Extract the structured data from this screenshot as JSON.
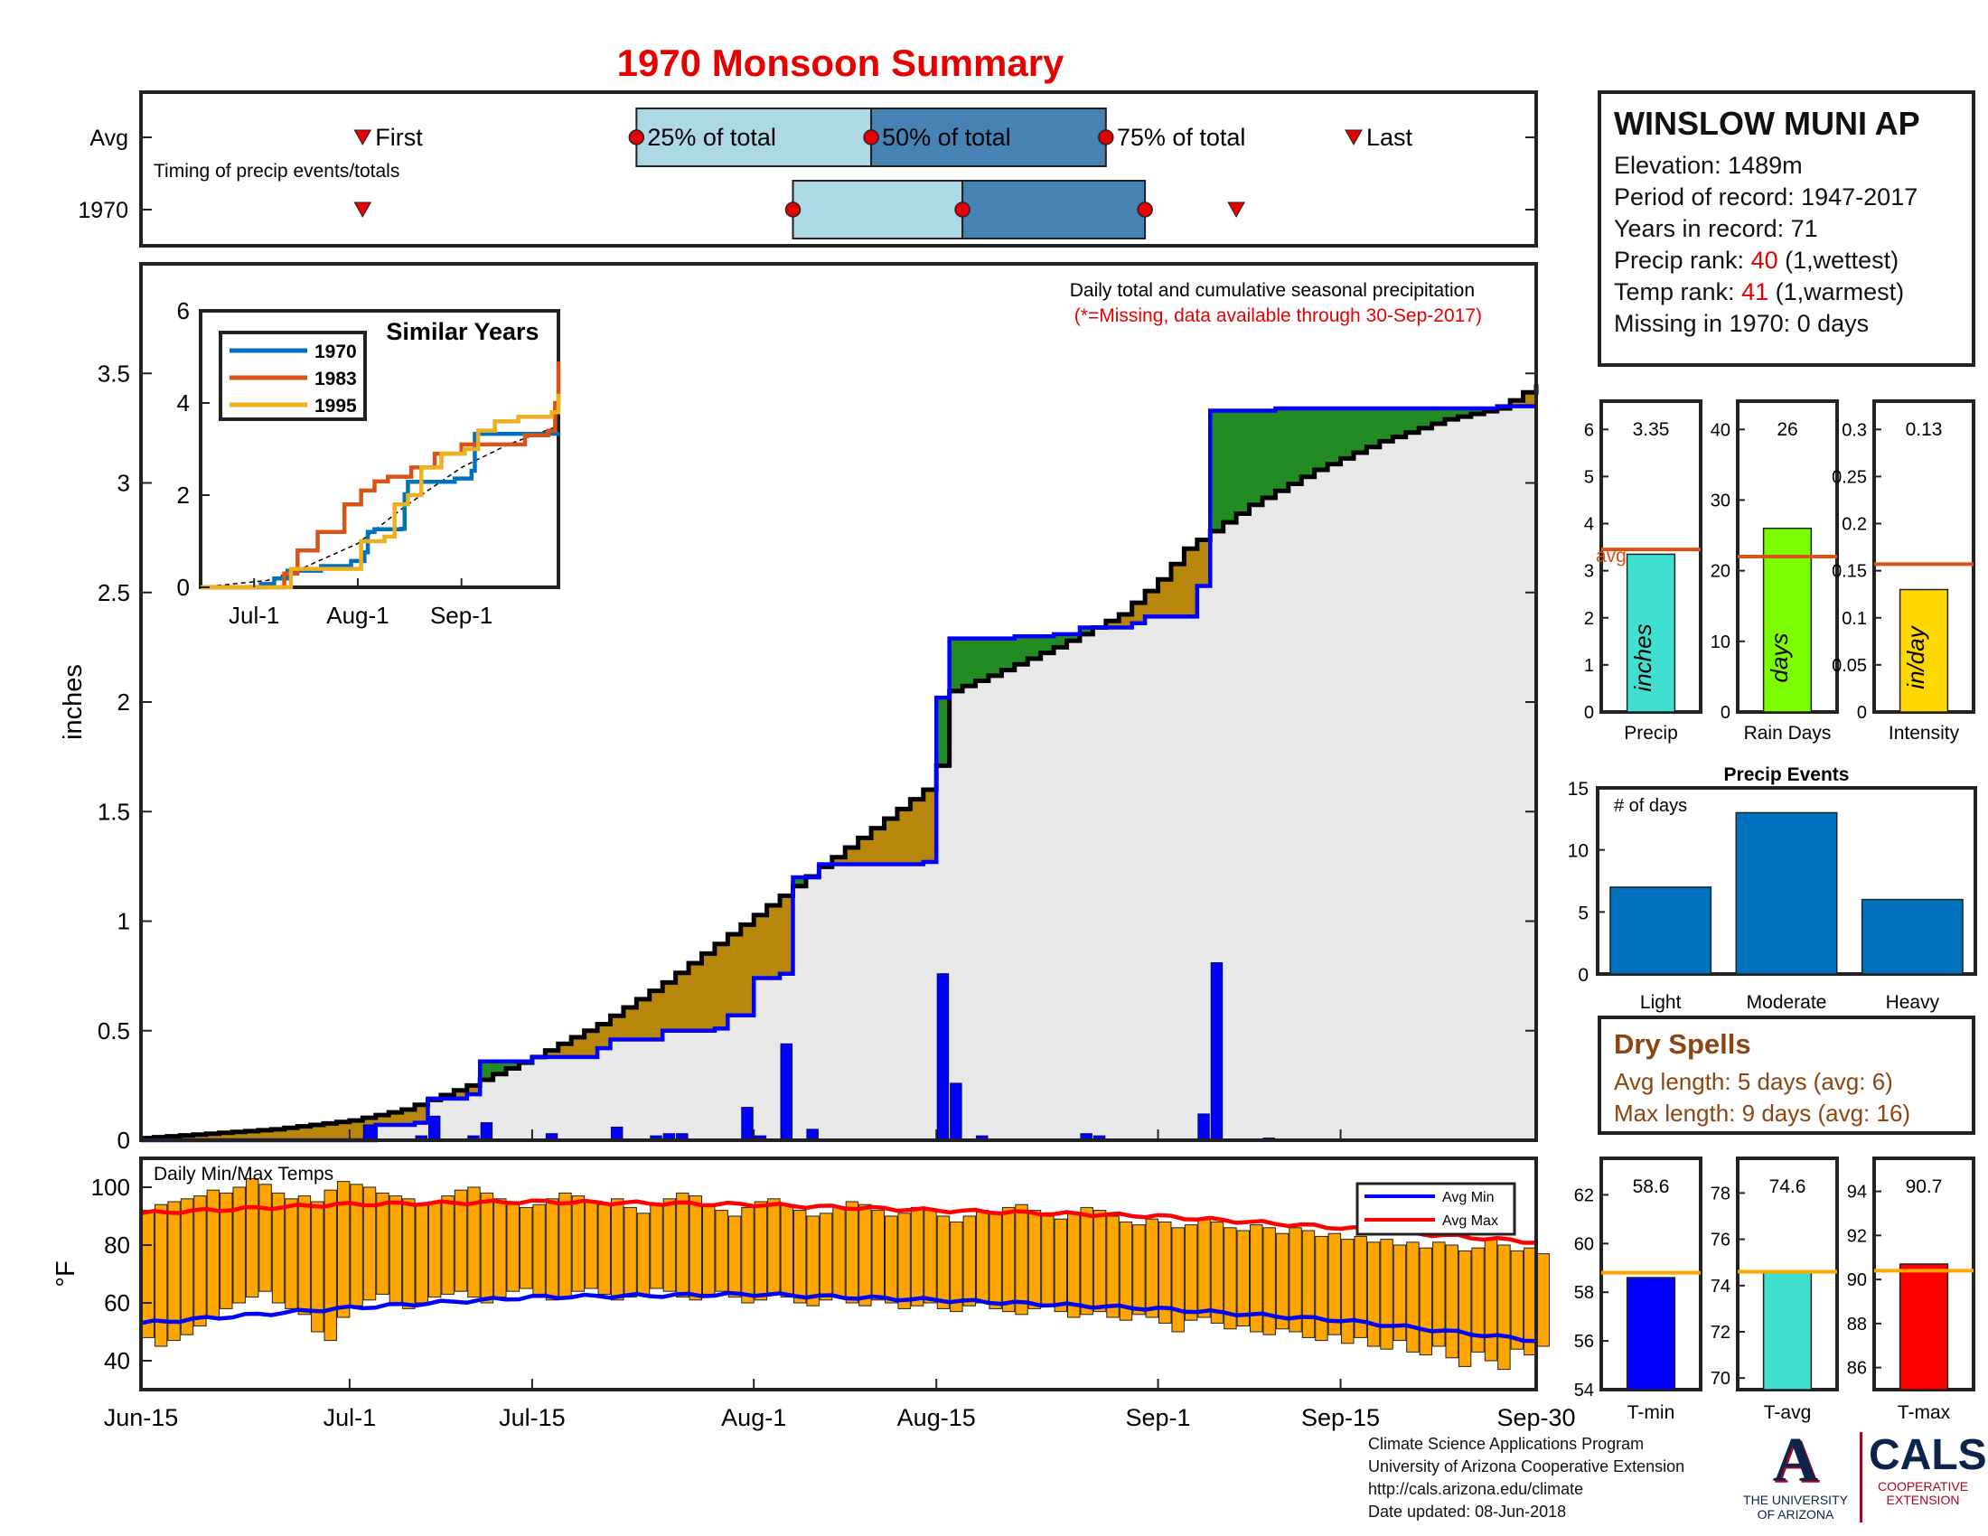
{
  "title": "1970 Monsoon Summary",
  "station": {
    "name": "WINSLOW MUNI AP",
    "elevation": "Elevation: 1489m",
    "period": "Period of record: 1947-2017",
    "years": "Years in record: 71",
    "precip_rank_label": "Precip rank: ",
    "precip_rank_value": "40",
    "precip_rank_note": " (1,wettest)",
    "temp_rank_label": "Temp rank: ",
    "temp_rank_value": "41",
    "temp_rank_note": " (1,warmest)",
    "missing": "Missing in 1970: 0 days"
  },
  "dry_spells": {
    "title": "Dry Spells",
    "avg": "Avg length: 5 days (avg: 6)",
    "max": "Max length: 9 days (avg: 16)"
  },
  "credits": {
    "line1": "Climate Science Applications Program",
    "line2": "University of Arizona Cooperative Extension",
    "line3": "http://cals.arizona.edu/climate",
    "line4": " Date updated: 08-Jun-2018"
  },
  "logos": {
    "ua_mark": "A",
    "ua_text1": "THE UNIVERSITY",
    "ua_text2": "OF ARIZONA",
    "cals_mark": "CALS",
    "cals_text1": "COOPERATIVE",
    "cals_text2": "EXTENSION"
  },
  "chart_data": [
    {
      "id": "timing",
      "type": "bar",
      "row_labels": [
        "Avg",
        "1970"
      ],
      "note": "Timing of precip events/totals",
      "annotations": [
        "First",
        "25% of total",
        "50% of total",
        "75% of total",
        "Last"
      ],
      "x_range": [
        "Jun-15",
        "Sep-30"
      ],
      "rows": [
        {
          "label": "Avg",
          "first_day": 17,
          "p25_day": 38,
          "p50_day": 56,
          "p75_day": 74,
          "last_day": 93
        },
        {
          "label": "1970",
          "first_day": 17,
          "p25_day": 50,
          "p50_day": 63,
          "p75_day": 77,
          "last_day": 84
        }
      ],
      "colors": {
        "early": "#add8e6",
        "late": "#4682b4",
        "marker": "#e60000"
      }
    },
    {
      "id": "precip",
      "type": "area",
      "note_title": "Daily total and cumulative seasonal precipitation",
      "note_missing": "(*=Missing, data available through 30-Sep-2017)",
      "ylabel": "inches",
      "ylim": [
        0,
        4
      ],
      "yticks": [
        0,
        0.5,
        1,
        1.5,
        2,
        2.5,
        3,
        3.5
      ],
      "xticks": [
        "Jun-15",
        "Jul-1",
        "Jul-15",
        "Aug-1",
        "Aug-15",
        "Sep-1",
        "Sep-15",
        "Sep-30"
      ],
      "xtick_days": [
        0,
        16,
        30,
        47,
        61,
        78,
        92,
        107
      ],
      "avg_cumulative": [
        [
          0,
          0.01
        ],
        [
          10,
          0.05
        ],
        [
          16,
          0.09
        ],
        [
          20,
          0.14
        ],
        [
          25,
          0.25
        ],
        [
          30,
          0.38
        ],
        [
          35,
          0.53
        ],
        [
          40,
          0.72
        ],
        [
          45,
          0.94
        ],
        [
          50,
          1.16
        ],
        [
          55,
          1.38
        ],
        [
          60,
          1.6
        ],
        [
          61,
          1.71
        ],
        [
          62,
          2.05
        ],
        [
          65,
          2.12
        ],
        [
          70,
          2.25
        ],
        [
          75,
          2.4
        ],
        [
          78,
          2.56
        ],
        [
          80,
          2.7
        ],
        [
          85,
          2.9
        ],
        [
          90,
          3.06
        ],
        [
          95,
          3.19
        ],
        [
          100,
          3.29
        ],
        [
          104,
          3.34
        ],
        [
          107,
          3.45
        ]
      ],
      "season_cumulative": [
        [
          0,
          0
        ],
        [
          10,
          0
        ],
        [
          17,
          0
        ],
        [
          18,
          0.07
        ],
        [
          21,
          0.08
        ],
        [
          22,
          0.19
        ],
        [
          25,
          0.21
        ],
        [
          26,
          0.36
        ],
        [
          30,
          0.38
        ],
        [
          35,
          0.42
        ],
        [
          36,
          0.46
        ],
        [
          40,
          0.5
        ],
        [
          44,
          0.51
        ],
        [
          45,
          0.57
        ],
        [
          47,
          0.74
        ],
        [
          49,
          0.76
        ],
        [
          50,
          1.2
        ],
        [
          52,
          1.26
        ],
        [
          60,
          1.27
        ],
        [
          61,
          2.02
        ],
        [
          62,
          2.29
        ],
        [
          67,
          2.3
        ],
        [
          70,
          2.31
        ],
        [
          72,
          2.34
        ],
        [
          76,
          2.36
        ],
        [
          77,
          2.39
        ],
        [
          81,
          2.53
        ],
        [
          82,
          3.33
        ],
        [
          87,
          3.34
        ],
        [
          104,
          3.35
        ],
        [
          107,
          3.35
        ]
      ],
      "daily": [
        [
          17,
          0.07
        ],
        [
          21,
          0.02
        ],
        [
          22,
          0.11
        ],
        [
          25,
          0.02
        ],
        [
          26,
          0.08
        ],
        [
          31,
          0.03
        ],
        [
          36,
          0.06
        ],
        [
          39,
          0.02
        ],
        [
          40,
          0.03
        ],
        [
          41,
          0.03
        ],
        [
          46,
          0.15
        ],
        [
          47,
          0.02
        ],
        [
          49,
          0.44
        ],
        [
          51,
          0.05
        ],
        [
          61,
          0.76
        ],
        [
          62,
          0.26
        ],
        [
          64,
          0.02
        ],
        [
          72,
          0.03
        ],
        [
          73,
          0.02
        ],
        [
          81,
          0.12
        ],
        [
          82,
          0.81
        ],
        [
          86,
          0.01
        ]
      ],
      "colors": {
        "deficit": "#b8860b",
        "surplus": "#228b22",
        "season_line": "#0000ff",
        "avg_line": "#000000",
        "daily": "#0000ff",
        "background": "#e8e8e8"
      }
    },
    {
      "id": "similar_years",
      "type": "line",
      "title": "Similar Years",
      "ylim": [
        0,
        6
      ],
      "yticks": [
        0,
        2,
        4,
        6
      ],
      "xticks": [
        "Jul-1",
        "Aug-1",
        "Sep-1"
      ],
      "xtick_days": [
        16,
        47,
        78
      ],
      "series": [
        {
          "name": "1970",
          "color": "#0072bd",
          "points": [
            [
              0,
              0
            ],
            [
              17,
              0
            ],
            [
              18,
              0.07
            ],
            [
              22,
              0.19
            ],
            [
              26,
              0.36
            ],
            [
              36,
              0.46
            ],
            [
              45,
              0.57
            ],
            [
              49,
              0.76
            ],
            [
              50,
              1.2
            ],
            [
              52,
              1.26
            ],
            [
              60,
              1.27
            ],
            [
              61,
              2.02
            ],
            [
              62,
              2.29
            ],
            [
              76,
              2.36
            ],
            [
              81,
              2.53
            ],
            [
              82,
              3.33
            ],
            [
              107,
              3.35
            ]
          ]
        },
        {
          "name": "1983",
          "color": "#d95319",
          "points": [
            [
              0,
              0
            ],
            [
              24,
              0
            ],
            [
              25,
              0.3
            ],
            [
              28,
              0.3
            ],
            [
              29,
              0.8
            ],
            [
              35,
              1.2
            ],
            [
              40,
              1.2
            ],
            [
              43,
              1.8
            ],
            [
              48,
              2.1
            ],
            [
              52,
              2.3
            ],
            [
              56,
              2.4
            ],
            [
              60,
              2.4
            ],
            [
              63,
              2.6
            ],
            [
              66,
              2.6
            ],
            [
              70,
              2.9
            ],
            [
              78,
              3.1
            ],
            [
              92,
              3.1
            ],
            [
              97,
              3.3
            ],
            [
              104,
              3.4
            ],
            [
              106,
              4.0
            ],
            [
              107,
              4.9
            ]
          ]
        },
        {
          "name": "1995",
          "color": "#edb120",
          "points": [
            [
              0,
              0
            ],
            [
              26,
              0
            ],
            [
              27,
              0.4
            ],
            [
              45,
              0.4
            ],
            [
              48,
              1.0
            ],
            [
              55,
              1.1
            ],
            [
              58,
              1.8
            ],
            [
              62,
              2.0
            ],
            [
              66,
              2.6
            ],
            [
              72,
              2.9
            ],
            [
              79,
              3.0
            ],
            [
              83,
              3.4
            ],
            [
              88,
              3.6
            ],
            [
              92,
              3.6
            ],
            [
              95,
              3.7
            ],
            [
              105,
              3.8
            ],
            [
              107,
              4.2
            ]
          ]
        }
      ],
      "avg_line": [
        [
          0,
          0
        ],
        [
          20,
          0.15
        ],
        [
          30,
          0.4
        ],
        [
          47,
          0.95
        ],
        [
          61,
          1.75
        ],
        [
          78,
          2.6
        ],
        [
          92,
          3.1
        ],
        [
          107,
          3.5
        ]
      ]
    },
    {
      "id": "temps",
      "type": "bar",
      "title": "Daily Min/Max Temps",
      "ylabel": "°F",
      "ylim": [
        30,
        110
      ],
      "yticks": [
        40,
        60,
        80,
        100
      ],
      "legend": [
        "Avg Min",
        "Avg Max"
      ],
      "tmax_seed": [
        92,
        94,
        95,
        96,
        97,
        99,
        98,
        100,
        103,
        101,
        98,
        96,
        97,
        95,
        99,
        102,
        101,
        100,
        98,
        97,
        96,
        94,
        95,
        97,
        99,
        100,
        98,
        96,
        95,
        93,
        94,
        96,
        98,
        97,
        95,
        94,
        96,
        93,
        91,
        94,
        96,
        98,
        97,
        94,
        92,
        90,
        93,
        95,
        96,
        94,
        92,
        90,
        91,
        93,
        95,
        94,
        92,
        90,
        91,
        93,
        92,
        90,
        88,
        90,
        92,
        91,
        93,
        94,
        92,
        90,
        89,
        91,
        93,
        92,
        90,
        88,
        87,
        89,
        88,
        86,
        87,
        89,
        88,
        86,
        85,
        87,
        86,
        84,
        86,
        85,
        83,
        84,
        82,
        83,
        81,
        82,
        80,
        81,
        79,
        81,
        80,
        78,
        79,
        82,
        80,
        78,
        79,
        77
      ],
      "tmin_seed": [
        48,
        45,
        47,
        49,
        52,
        55,
        58,
        60,
        62,
        64,
        60,
        58,
        56,
        50,
        47,
        55,
        59,
        61,
        63,
        60,
        58,
        60,
        62,
        63,
        64,
        62,
        60,
        62,
        64,
        65,
        63,
        61,
        62,
        64,
        65,
        63,
        61,
        62,
        63,
        65,
        64,
        62,
        61,
        63,
        64,
        62,
        60,
        61,
        63,
        62,
        60,
        59,
        61,
        62,
        60,
        59,
        61,
        60,
        58,
        59,
        60,
        58,
        57,
        59,
        60,
        58,
        57,
        56,
        58,
        59,
        57,
        55,
        56,
        57,
        55,
        54,
        56,
        55,
        53,
        50,
        54,
        55,
        53,
        51,
        52,
        50,
        49,
        51,
        50,
        48,
        47,
        49,
        46,
        48,
        45,
        44,
        47,
        43,
        42,
        45,
        41,
        38,
        43,
        40,
        37,
        44,
        42,
        45
      ],
      "avg_min": [
        [
          0,
          53
        ],
        [
          15,
          58
        ],
        [
          30,
          62
        ],
        [
          47,
          63
        ],
        [
          61,
          61
        ],
        [
          78,
          58
        ],
        [
          92,
          54
        ],
        [
          107,
          47
        ]
      ],
      "avg_max": [
        [
          0,
          91
        ],
        [
          15,
          94
        ],
        [
          30,
          95
        ],
        [
          47,
          94
        ],
        [
          61,
          92
        ],
        [
          78,
          90
        ],
        [
          92,
          86
        ],
        [
          107,
          81
        ]
      ],
      "colors": {
        "bar": "#ffa500",
        "avg_min": "#0000ff",
        "avg_max": "#ff0000"
      }
    },
    {
      "id": "precip_summary",
      "type": "bar",
      "panels": [
        {
          "label": "Precip",
          "value": 3.35,
          "display": "3.35",
          "unit": "inches",
          "avg": 3.45,
          "avg_label": "avg",
          "ylim": [
            0,
            6.6
          ],
          "yticks": [
            0,
            1,
            2,
            3,
            4,
            5,
            6
          ],
          "color": "#40e0d0"
        },
        {
          "label": "Rain Days",
          "value": 26,
          "display": "26",
          "unit": "days",
          "avg": 22,
          "ylim": [
            0,
            44
          ],
          "yticks": [
            0,
            10,
            20,
            30,
            40
          ],
          "color": "#7cfc00"
        },
        {
          "label": "Intensity",
          "value": 0.13,
          "display": "0.13",
          "unit": "in/day",
          "avg": 0.157,
          "ylim": [
            0,
            0.33
          ],
          "yticks_text": [
            "0",
            "0.05",
            "0.1",
            "0.15",
            "0.2",
            "0.25",
            "0.3"
          ],
          "yticks": [
            0,
            0.05,
            0.1,
            0.15,
            0.2,
            0.25,
            0.3
          ],
          "color": "#ffd700"
        }
      ],
      "avg_color": "#d95319"
    },
    {
      "id": "precip_events",
      "type": "bar",
      "title": "Precip Events",
      "ylabel_note": "# of days",
      "categories": [
        "Light",
        "Moderate",
        "Heavy"
      ],
      "values": [
        7,
        13,
        6
      ],
      "ylim": [
        0,
        15
      ],
      "yticks": [
        0,
        5,
        10,
        15
      ],
      "color": "#0072bd"
    },
    {
      "id": "temp_summary",
      "type": "bar",
      "panels": [
        {
          "label": "T-min",
          "value": 58.6,
          "display": "58.6",
          "avg": 58.8,
          "ylim": [
            54,
            63.5
          ],
          "yticks": [
            54,
            56,
            58,
            60,
            62
          ],
          "color": "#0000ff"
        },
        {
          "label": "T-avg",
          "value": 74.6,
          "display": "74.6",
          "avg": 74.6,
          "ylim": [
            69.5,
            79.5
          ],
          "yticks": [
            70,
            72,
            74,
            76,
            78
          ],
          "color": "#40e0d0"
        },
        {
          "label": "T-max",
          "value": 90.7,
          "display": "90.7",
          "avg": 90.4,
          "ylim": [
            85,
            95.5
          ],
          "yticks": [
            86,
            88,
            90,
            92,
            94
          ],
          "color": "#ff0000"
        }
      ],
      "avg_color": "#ffa500"
    }
  ]
}
